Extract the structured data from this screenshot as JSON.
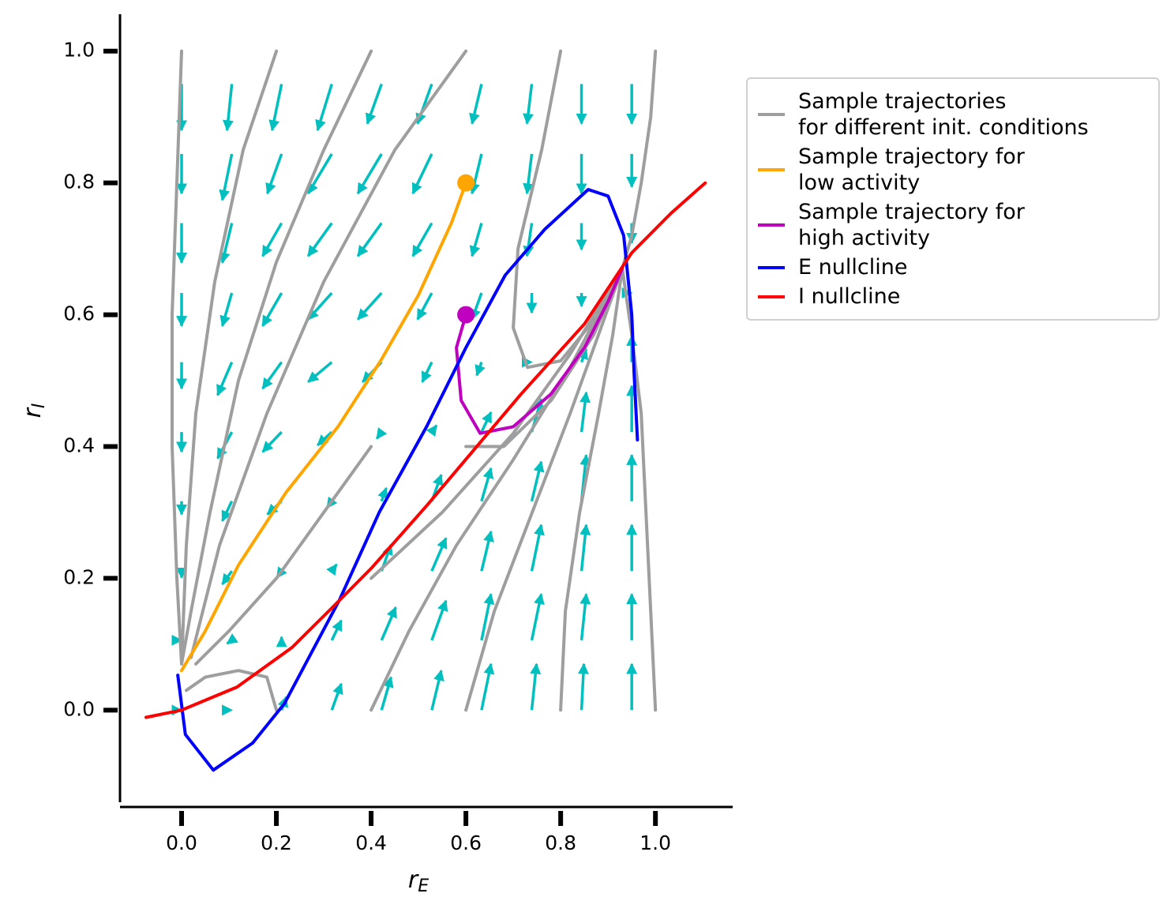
{
  "chart_data": {
    "type": "line",
    "xlabel": [
      "r",
      "E"
    ],
    "ylabel": [
      "r",
      "I"
    ],
    "xlim": [
      -0.13,
      1.163
    ],
    "ylim": [
      -0.147,
      1.056
    ],
    "xticks": [
      {
        "value": 0,
        "label": "0.0"
      },
      0.2,
      0.4,
      0.6,
      0.8,
      {
        "value": 1,
        "label": "1.0"
      }
    ],
    "yticks": [
      {
        "value": 0,
        "label": "0.0"
      },
      0.2,
      0.4,
      0.6,
      0.8,
      {
        "value": 1,
        "label": "1.0"
      }
    ],
    "legend": "right",
    "quiver": {
      "color": "#00bfbf",
      "x": [
        0,
        0.106,
        0.211,
        0.317,
        0.422,
        0.528,
        0.633,
        0.739,
        0.844,
        0.95
      ],
      "y": [
        0,
        0.106,
        0.211,
        0.317,
        0.422,
        0.528,
        0.633,
        0.739,
        0.844,
        0.95
      ],
      "u": [
        [
          0,
          0,
          0.01,
          0.02,
          0.02,
          0.02,
          0.02,
          0.01,
          0.005,
          0
        ],
        [
          0,
          -0.01,
          0,
          0.02,
          0.03,
          0.03,
          0.02,
          0.02,
          0.01,
          0
        ],
        [
          0,
          -0.02,
          -0.01,
          0.01,
          0.02,
          0.03,
          0.02,
          0.02,
          0.01,
          0
        ],
        [
          0,
          -0.02,
          -0.03,
          -0.01,
          0.01,
          0.02,
          0.02,
          0.02,
          0.01,
          0
        ],
        [
          0,
          -0.03,
          -0.04,
          -0.03,
          -0.01,
          0.01,
          0.02,
          0.02,
          0.01,
          0
        ],
        [
          0,
          -0.03,
          -0.04,
          -0.05,
          -0.04,
          -0.02,
          -0.01,
          0,
          0.01,
          0
        ],
        [
          0,
          -0.02,
          -0.04,
          -0.05,
          -0.05,
          -0.03,
          -0.02,
          0,
          0,
          0
        ],
        [
          0,
          -0.02,
          -0.04,
          -0.05,
          -0.05,
          -0.04,
          -0.02,
          -0.01,
          0,
          0
        ],
        [
          0,
          -0.02,
          -0.03,
          -0.05,
          -0.05,
          -0.04,
          -0.02,
          -0.01,
          0,
          0
        ],
        [
          0,
          -0.01,
          -0.02,
          -0.03,
          -0.03,
          -0.03,
          -0.02,
          -0.01,
          0,
          0
        ]
      ],
      "v": [
        [
          0,
          0,
          0.02,
          0.04,
          0.05,
          0.06,
          0.07,
          0.07,
          0.07,
          0.07
        ],
        [
          0,
          -0.005,
          0.005,
          0.03,
          0.05,
          0.06,
          0.07,
          0.07,
          0.07,
          0.07
        ],
        [
          -0.01,
          -0.02,
          -0.01,
          0.01,
          0.04,
          0.05,
          0.06,
          0.07,
          0.07,
          0.07
        ],
        [
          -0.02,
          -0.03,
          -0.02,
          -0.01,
          0.02,
          0.04,
          0.05,
          0.06,
          0.07,
          0.07
        ],
        [
          -0.03,
          -0.04,
          -0.03,
          -0.02,
          -0.01,
          0.01,
          0.03,
          0.05,
          0.06,
          0.07
        ],
        [
          -0.04,
          -0.05,
          -0.04,
          -0.03,
          -0.03,
          -0.03,
          -0.02,
          0,
          0.02,
          0.04
        ],
        [
          -0.05,
          -0.05,
          -0.05,
          -0.04,
          -0.04,
          -0.04,
          -0.04,
          -0.03,
          -0.02,
          0
        ],
        [
          -0.06,
          -0.06,
          -0.05,
          -0.05,
          -0.05,
          -0.05,
          -0.05,
          -0.05,
          -0.04,
          -0.03
        ],
        [
          -0.06,
          -0.07,
          -0.06,
          -0.06,
          -0.06,
          -0.06,
          -0.06,
          -0.06,
          -0.06,
          -0.05
        ],
        [
          -0.07,
          -0.07,
          -0.07,
          -0.07,
          -0.06,
          -0.06,
          -0.06,
          -0.06,
          -0.06,
          -0.06
        ]
      ]
    },
    "series": [
      {
        "name": "Sample trajectories\nfor different init. conditions",
        "color": "#9e9e9e",
        "x": [
          0.0,
          -0.01,
          -0.02,
          -0.02,
          -0.01,
          0.0,
          null,
          0.2,
          0.13,
          0.07,
          0.03,
          0.01,
          0.0,
          null,
          0.4,
          0.3,
          0.2,
          0.12,
          0.06,
          0.02,
          0.0,
          null,
          0.6,
          0.45,
          0.3,
          0.18,
          0.08,
          0.02,
          null,
          0.4,
          0.3,
          0.2,
          0.1,
          0.03,
          null,
          0.2,
          0.18,
          0.12,
          0.05,
          0.01,
          null,
          0.8,
          0.76,
          0.71,
          0.7,
          0.73,
          0.8,
          0.88,
          0.93,
          null,
          1.0,
          0.99,
          0.97,
          0.95,
          0.93,
          null,
          0.4,
          0.48,
          0.58,
          0.7,
          0.82,
          0.93,
          null,
          0.6,
          0.66,
          0.74,
          0.82,
          0.88,
          0.93,
          null,
          0.8,
          0.81,
          0.84,
          0.88,
          0.91,
          0.93,
          null,
          1.0,
          0.99,
          0.98,
          0.97,
          0.95,
          0.93,
          null,
          0.4,
          0.55,
          0.7,
          0.82,
          0.93,
          null,
          0.6,
          0.68,
          0.78,
          0.87,
          0.93
        ],
        "y": [
          1.0,
          0.8,
          0.6,
          0.4,
          0.2,
          0.07,
          null,
          1.0,
          0.85,
          0.65,
          0.45,
          0.25,
          0.07,
          null,
          1.0,
          0.85,
          0.68,
          0.5,
          0.3,
          0.15,
          0.07,
          null,
          1.0,
          0.85,
          0.65,
          0.45,
          0.25,
          0.08,
          null,
          0.4,
          0.3,
          0.2,
          0.12,
          0.07,
          null,
          0.0,
          0.05,
          0.06,
          0.05,
          0.03,
          null,
          1.0,
          0.85,
          0.7,
          0.58,
          0.52,
          0.53,
          0.6,
          0.67,
          null,
          1.0,
          0.9,
          0.8,
          0.72,
          0.67,
          null,
          0.0,
          0.12,
          0.25,
          0.38,
          0.52,
          0.67,
          null,
          0.0,
          0.15,
          0.3,
          0.45,
          0.57,
          0.67,
          null,
          0.0,
          0.15,
          0.3,
          0.45,
          0.57,
          0.67,
          null,
          0.0,
          0.15,
          0.3,
          0.45,
          0.57,
          0.67,
          null,
          0.2,
          0.3,
          0.42,
          0.54,
          0.67,
          null,
          0.4,
          0.4,
          0.47,
          0.57,
          0.67
        ]
      },
      {
        "name": "Sample trajectory for\nlow activity",
        "color": "#ffa500",
        "start_marker": true,
        "x": [
          0.6,
          0.57,
          0.5,
          0.42,
          0.33,
          0.22,
          0.12,
          0.05,
          0.0
        ],
        "y": [
          0.8,
          0.74,
          0.63,
          0.53,
          0.43,
          0.33,
          0.22,
          0.12,
          0.06
        ]
      },
      {
        "name": "Sample trajectory for\nhigh activity",
        "color": "#bf00bf",
        "start_marker": true,
        "x": [
          0.6,
          0.58,
          0.59,
          0.63,
          0.7,
          0.78,
          0.85,
          0.9,
          0.93
        ],
        "y": [
          0.6,
          0.55,
          0.47,
          0.42,
          0.43,
          0.48,
          0.55,
          0.62,
          0.67
        ]
      },
      {
        "name": "E nullcline",
        "color": "#0000ff",
        "x": [
          0.962,
          0.955,
          0.95,
          0.933,
          0.9,
          0.858,
          0.767,
          0.683,
          0.6,
          0.517,
          0.417,
          0.333,
          0.217,
          0.15,
          0.067,
          0.008,
          -0.008
        ],
        "y": [
          0.41,
          0.51,
          0.6,
          0.72,
          0.78,
          0.79,
          0.73,
          0.66,
          0.55,
          0.43,
          0.3,
          0.167,
          0.01,
          -0.05,
          -0.091,
          -0.037,
          0.053
        ]
      },
      {
        "name": "I nullcline",
        "color": "#ff0000",
        "x": [
          -0.075,
          0.0,
          0.117,
          0.233,
          0.317,
          0.4,
          0.517,
          0.617,
          0.717,
          0.85,
          0.95,
          1.033,
          1.105
        ],
        "y": [
          -0.011,
          0.0,
          0.035,
          0.095,
          0.155,
          0.215,
          0.31,
          0.395,
          0.48,
          0.586,
          0.694,
          0.754,
          0.8
        ]
      }
    ]
  }
}
